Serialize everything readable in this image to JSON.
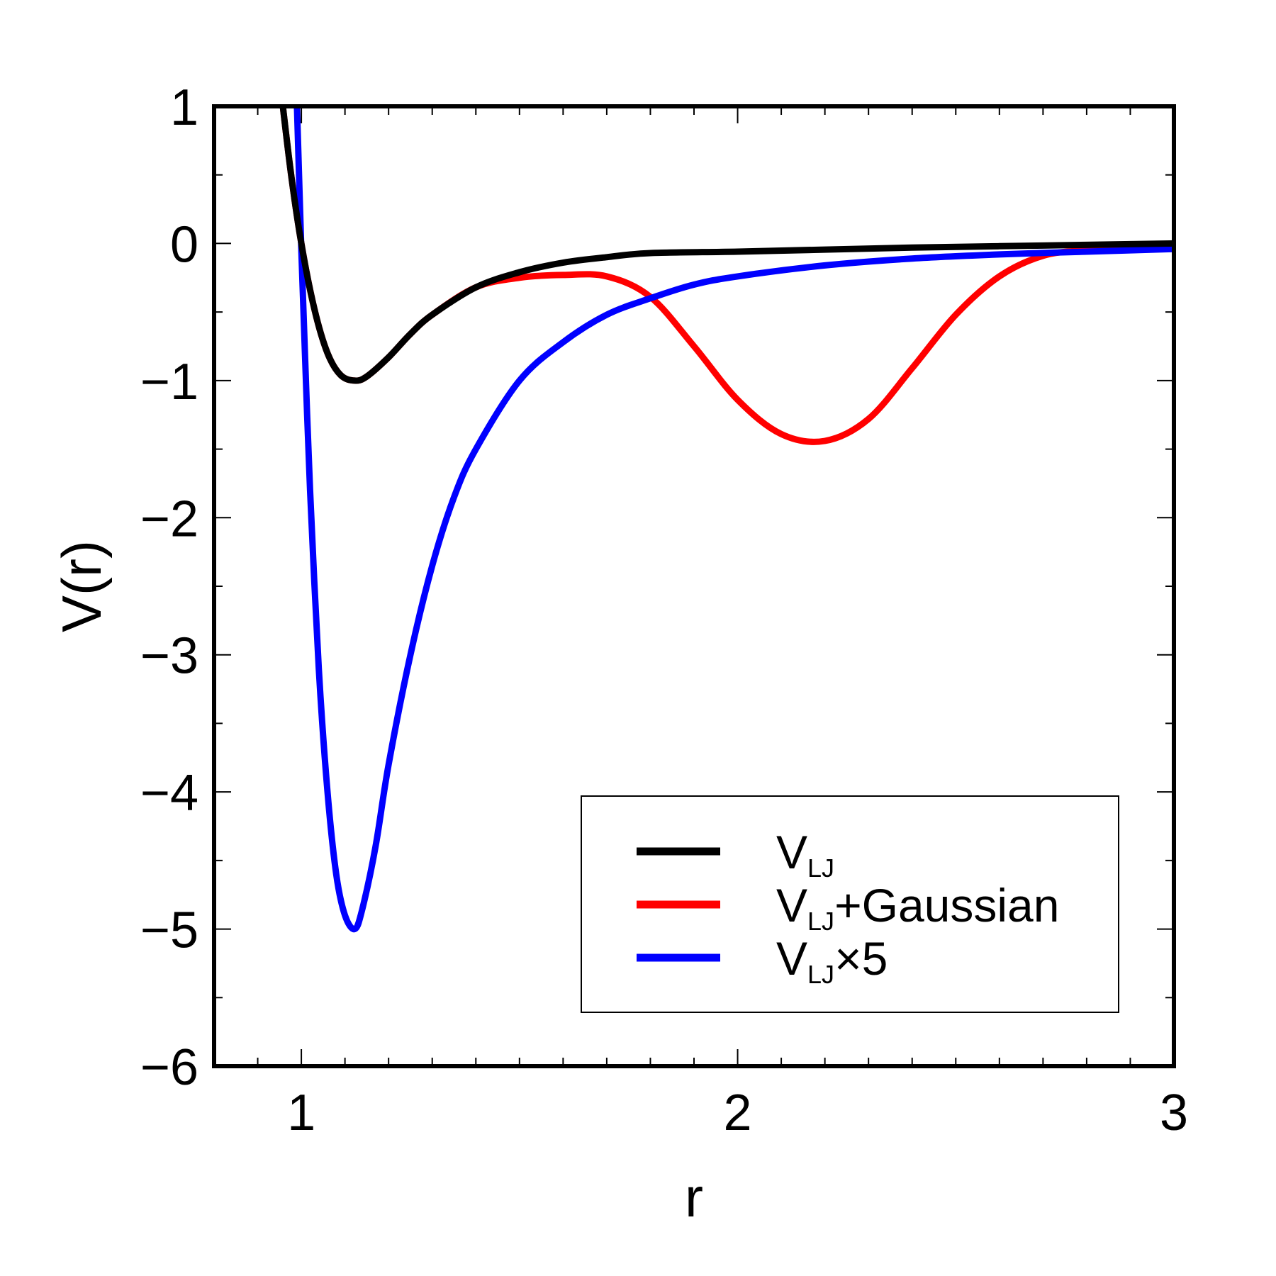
{
  "chart_data": {
    "type": "line",
    "xlabel": "r",
    "ylabel": "V(r)",
    "xlim": [
      0.8,
      3.0
    ],
    "ylim": [
      -6,
      1
    ],
    "x_ticks": [
      1,
      2,
      3
    ],
    "x_tick_labels": [
      "1",
      "2",
      "3"
    ],
    "x_minor_step": 0.1,
    "y_ticks": [
      1,
      0,
      -1,
      -2,
      -3,
      -4,
      -5,
      -6
    ],
    "y_tick_labels": [
      "1",
      "0",
      "−1",
      "−2",
      "−3",
      "−4",
      "−5",
      "−6"
    ],
    "y_minor_step": 0.5,
    "grid": false,
    "legend_position": "bottom-right",
    "series": [
      {
        "key": "lj",
        "name_main": "V",
        "name_sub": "LJ",
        "name_suffix": "",
        "color": "#000000",
        "x": [
          0.95,
          0.975,
          1.0,
          1.03,
          1.06,
          1.09,
          1.1225,
          1.15,
          1.2,
          1.25,
          1.3,
          1.4,
          1.5,
          1.6,
          1.7,
          1.8,
          2.0,
          2.2,
          2.4,
          2.6,
          2.8,
          3.0
        ],
        "y": [
          1.21,
          0.54,
          0.0,
          -0.48,
          -0.8,
          -0.96,
          -1.0,
          -0.97,
          -0.83,
          -0.66,
          -0.52,
          -0.32,
          -0.21,
          -0.14,
          -0.1,
          -0.07,
          -0.06,
          -0.045,
          -0.03,
          -0.02,
          -0.01,
          0.0
        ]
      },
      {
        "key": "gauss",
        "name_main": "V",
        "name_sub": "LJ",
        "name_suffix": "+Gaussian",
        "color": "#ff0000",
        "x": [
          0.95,
          0.975,
          1.0,
          1.03,
          1.06,
          1.09,
          1.1225,
          1.15,
          1.2,
          1.25,
          1.3,
          1.4,
          1.5,
          1.6,
          1.7,
          1.8,
          1.9,
          2.0,
          2.1,
          2.2,
          2.3,
          2.4,
          2.5,
          2.6,
          2.7,
          2.8,
          2.9,
          3.0
        ],
        "y": [
          1.21,
          0.54,
          0.0,
          -0.48,
          -0.8,
          -0.96,
          -1.0,
          -0.97,
          -0.83,
          -0.66,
          -0.52,
          -0.32,
          -0.25,
          -0.23,
          -0.24,
          -0.39,
          -0.75,
          -1.14,
          -1.39,
          -1.44,
          -1.28,
          -0.91,
          -0.52,
          -0.24,
          -0.09,
          -0.05,
          -0.04,
          -0.04
        ]
      },
      {
        "key": "lj5",
        "name_main": "V",
        "name_sub": "LJ",
        "name_suffix": "×5",
        "color": "#0000ff",
        "x": [
          0.99,
          1.0,
          1.01,
          1.02,
          1.04,
          1.06,
          1.08,
          1.1,
          1.1225,
          1.14,
          1.17,
          1.2,
          1.25,
          1.3,
          1.35,
          1.4,
          1.5,
          1.6,
          1.7,
          1.8,
          1.9,
          2.0,
          2.2,
          2.4,
          2.6,
          2.8,
          3.0
        ],
        "y": [
          1.0,
          -0.05,
          -0.95,
          -1.8,
          -3.1,
          -4.0,
          -4.6,
          -4.9,
          -5.0,
          -4.85,
          -4.4,
          -3.8,
          -3.0,
          -2.35,
          -1.85,
          -1.5,
          -1.0,
          -0.72,
          -0.52,
          -0.4,
          -0.3,
          -0.24,
          -0.16,
          -0.11,
          -0.08,
          -0.06,
          -0.04
        ]
      }
    ]
  }
}
